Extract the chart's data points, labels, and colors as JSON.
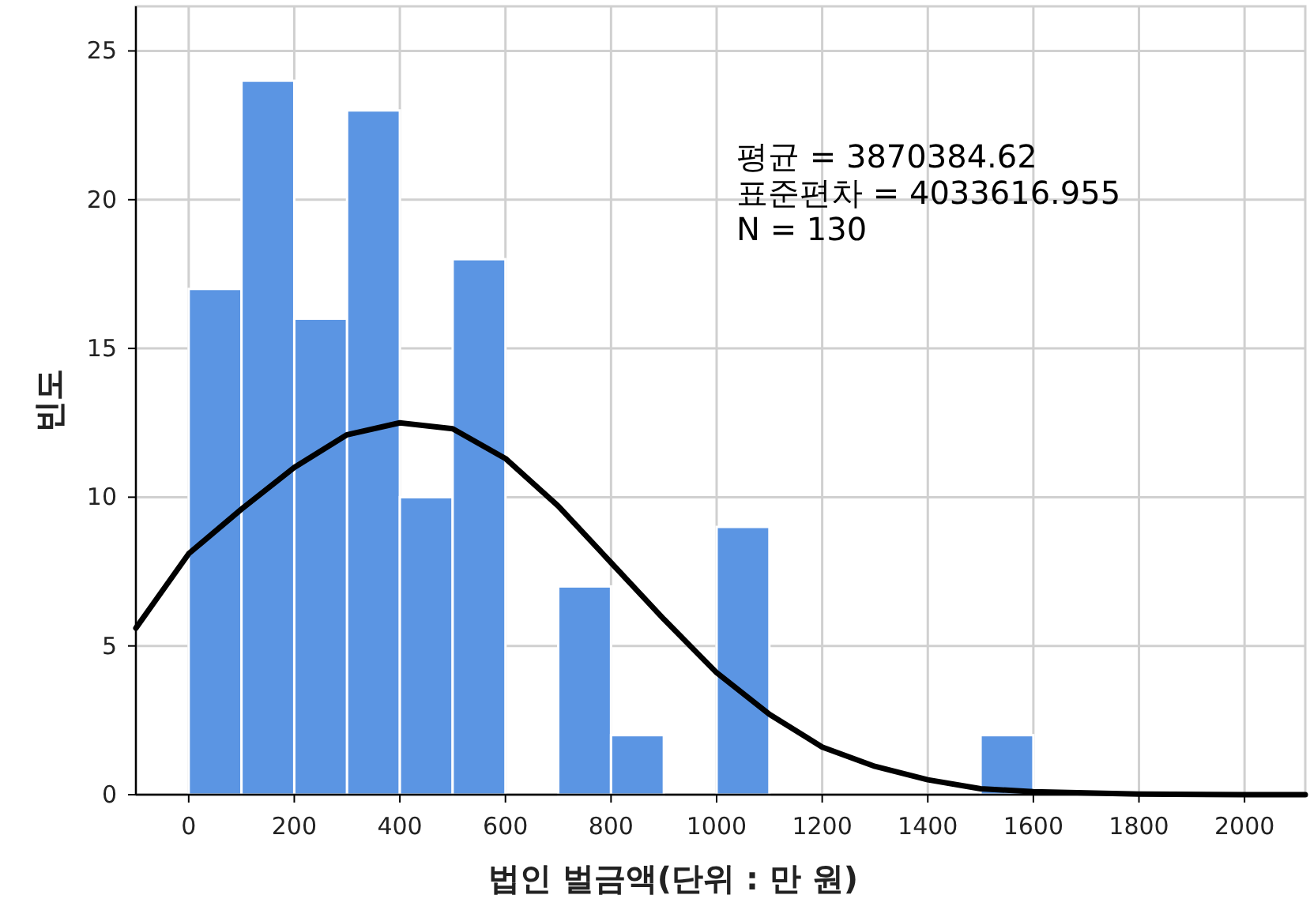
{
  "chart_data": {
    "type": "histogram",
    "xlabel": "법인 벌금액(단위 : 만 원)",
    "ylabel": "빈도",
    "annotations": [
      "평균 = 3870384.62",
      "표준편차 = 4033616.955",
      "N = 130"
    ],
    "xlim": [
      -100,
      2115
    ],
    "ylim": [
      0,
      26.5
    ],
    "xticks": [
      0,
      200,
      400,
      600,
      800,
      1000,
      1200,
      1400,
      1600,
      1800,
      2000
    ],
    "yticks": [
      0,
      5,
      10,
      15,
      20,
      25
    ],
    "grid": true,
    "series": [
      {
        "color": "#5b95e3",
        "bins": [
          0,
          100,
          200,
          300,
          400,
          500,
          600,
          700,
          800,
          900,
          1000,
          1100,
          1200,
          1300,
          1400,
          1500,
          1600
        ],
        "values": [
          17,
          24,
          16,
          23,
          10,
          18,
          0,
          7,
          2,
          0,
          9,
          0,
          0,
          0,
          0,
          2
        ]
      },
      {
        "type": "line",
        "color": "#000000",
        "x": [
          -100,
          0,
          100,
          200,
          300,
          400,
          500,
          600,
          700,
          800,
          900,
          1000,
          1100,
          1200,
          1300,
          1400,
          1500,
          1600,
          1800,
          2000,
          2115
        ],
        "values": [
          5.6,
          8.1,
          9.6,
          11.0,
          12.1,
          12.5,
          12.3,
          11.3,
          9.7,
          7.8,
          5.9,
          4.1,
          2.7,
          1.6,
          0.95,
          0.5,
          0.2,
          0.1,
          0.02,
          0,
          0
        ]
      }
    ]
  }
}
